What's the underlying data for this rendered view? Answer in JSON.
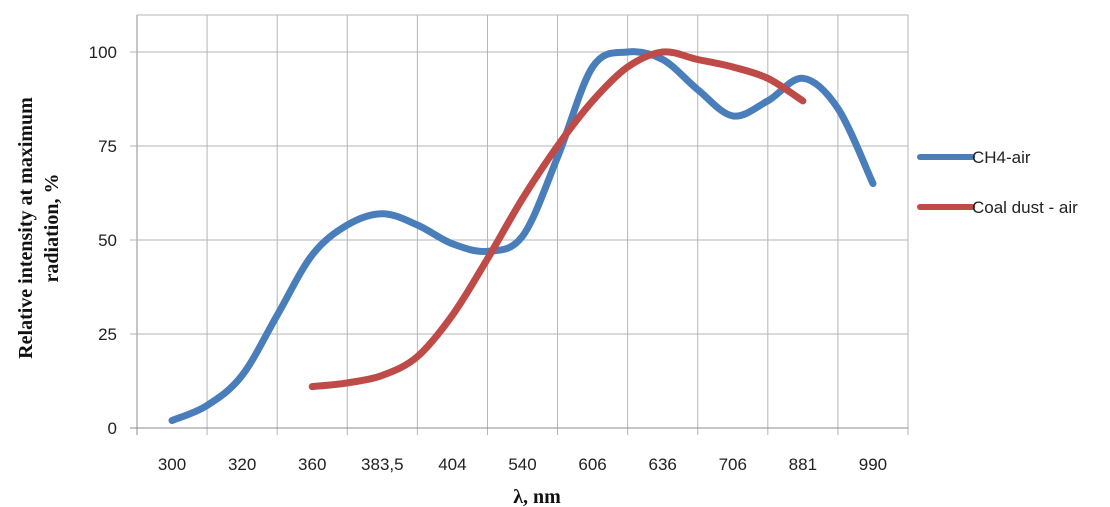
{
  "chart_data": {
    "type": "line",
    "title": "",
    "xlabel": "λ, nm",
    "ylabel_lines": [
      "Relative intensity at maximum",
      "radiation,  %"
    ],
    "categories": [
      "300",
      "320",
      "360",
      "383,5",
      "404",
      "540",
      "606",
      "636",
      "706",
      "881",
      "990"
    ],
    "ylim": [
      0,
      100
    ],
    "yticks": [
      0,
      25,
      50,
      75,
      100
    ],
    "grid": true,
    "legend_position": "right",
    "series": [
      {
        "name": "CH4-air",
        "color": "#4a7ebb",
        "x": [
          0,
          0.5,
          1,
          1.5,
          2,
          2.5,
          3,
          3.5,
          4,
          4.5,
          5,
          5.5,
          6,
          6.5,
          7,
          7.5,
          8,
          8.5,
          9,
          9.5,
          10
        ],
        "values": [
          2,
          6,
          14,
          30,
          46,
          54,
          57,
          54,
          49,
          47,
          51,
          72,
          96,
          100,
          98,
          90,
          83,
          87,
          93,
          85,
          65
        ]
      },
      {
        "name": "Coal dust - air",
        "color": "#be4b48",
        "x": [
          2,
          2.5,
          3,
          3.5,
          4,
          4.5,
          5,
          5.5,
          6,
          6.5,
          7,
          7.5,
          8,
          8.5,
          9
        ],
        "values": [
          11,
          12,
          14,
          19,
          30,
          45,
          61,
          75,
          87,
          96,
          100,
          98,
          96,
          93,
          87
        ]
      }
    ]
  }
}
